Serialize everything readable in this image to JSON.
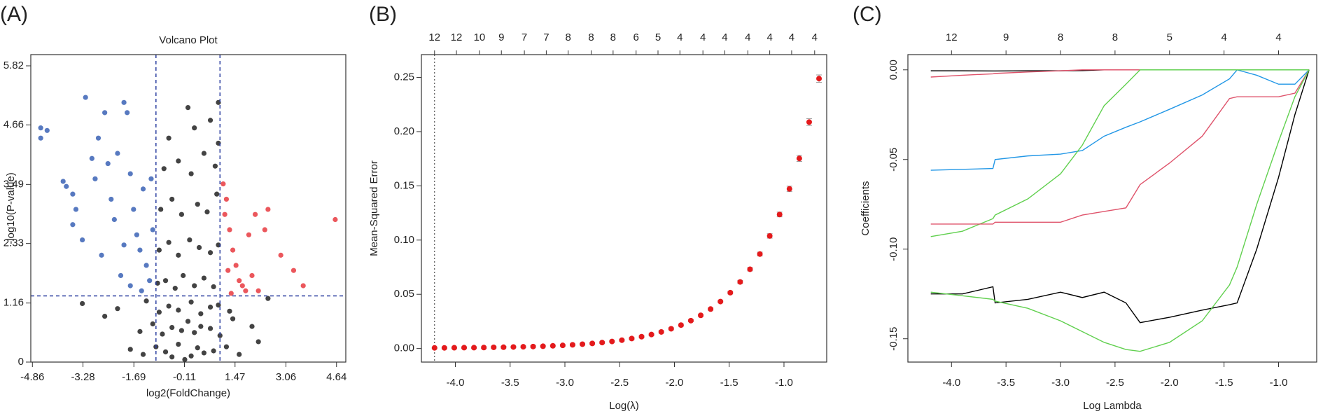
{
  "chart_data": [
    {
      "type": "volcano",
      "panel_label": "(A)",
      "title": "Volcano Plot",
      "x_label": "log2(FoldChange)",
      "y_label": "-log10(P-value)",
      "xlim": [
        -4.91,
        4.93
      ],
      "ylim": [
        0,
        6.04
      ],
      "xticks": [
        -4.86,
        -3.28,
        -1.69,
        -0.11,
        1.47,
        3.06,
        4.64
      ],
      "yticks": [
        0,
        1.16,
        2.33,
        3.49,
        4.66,
        5.82
      ],
      "vlines": [
        -1,
        1
      ],
      "hline": 1.3,
      "line_color": "#2b3fa0",
      "series": [
        {
          "color": "#222222",
          "x": [
            -1.8,
            -1.4,
            -1.0,
            -0.7,
            -0.5,
            -0.3,
            -0.1,
            0.1,
            0.3,
            0.5,
            0.8,
            1.2,
            1.6,
            2.2,
            -2.6,
            -1.5,
            -1.1,
            -0.8,
            -0.5,
            -0.2,
            0,
            0.2,
            0.4,
            0.7,
            1.0,
            1.4,
            2.0,
            -3.3,
            -2.2,
            -1.3,
            -0.9,
            -0.6,
            -0.3,
            0.1,
            0.4,
            0.7,
            0.95,
            1.3,
            2.5,
            -0.95,
            -0.7,
            -0.4,
            -0.15,
            0.2,
            0.5,
            0.8,
            -0.9,
            -0.6,
            -0.3,
            0.05,
            0.35,
            0.7,
            0.95,
            -0.85,
            -0.5,
            -0.2,
            0.3,
            0.6,
            0.9,
            -0.75,
            -0.3,
            0.1,
            0.5,
            0.85,
            -0.6,
            0.2,
            0.7,
            0.95,
            0.95,
            0
          ],
          "y": [
            0.25,
            0.15,
            0.3,
            0.2,
            0.1,
            0.35,
            0.05,
            0.12,
            0.28,
            0.18,
            0.22,
            0.3,
            0.15,
            0.4,
            0.9,
            0.6,
            0.75,
            0.55,
            0.68,
            0.62,
            0.8,
            0.58,
            0.7,
            0.66,
            0.52,
            0.85,
            0.7,
            1.15,
            1.05,
            1.2,
            0.98,
            1.1,
            1.02,
            1.18,
            0.95,
            1.08,
            1.12,
            1.0,
            1.25,
            1.55,
            1.6,
            1.45,
            1.7,
            1.5,
            1.65,
            1.48,
            2.2,
            2.35,
            2.1,
            2.4,
            2.25,
            2.15,
            2.3,
            3.0,
            3.2,
            2.9,
            3.1,
            2.95,
            3.3,
            3.8,
            3.95,
            3.7,
            4.1,
            3.85,
            4.4,
            4.6,
            4.75,
            4.3,
            5.1,
            5.0
          ]
        },
        {
          "color": "#3a62b5",
          "x": [
            -4.6,
            -4.6,
            -4.4,
            -3.9,
            -3.8,
            -3.6,
            -3.5,
            -3.2,
            -3.0,
            -2.9,
            -2.8,
            -2.6,
            -2.5,
            -2.4,
            -2.3,
            -2.2,
            -2.0,
            -1.9,
            -1.8,
            -1.7,
            -1.6,
            -1.5,
            -1.4,
            -1.3,
            -1.2,
            -1.1,
            -3.3,
            -2.7,
            -2.1,
            -1.8,
            -1.45,
            -1.15,
            -3.6,
            -2.0
          ],
          "y": [
            4.6,
            4.4,
            4.55,
            3.55,
            3.45,
            3.3,
            3.0,
            5.2,
            4.0,
            3.6,
            4.4,
            4.9,
            3.9,
            3.2,
            2.8,
            4.1,
            5.1,
            4.9,
            3.7,
            3.0,
            2.5,
            2.2,
            3.4,
            1.9,
            1.6,
            2.6,
            2.4,
            2.1,
            1.7,
            1.5,
            1.4,
            3.6,
            2.7,
            2.3
          ]
        },
        {
          "color": "#e8393f",
          "x": [
            1.1,
            1.2,
            1.3,
            1.4,
            1.5,
            1.6,
            1.7,
            1.9,
            2.1,
            2.4,
            2.5,
            2.9,
            3.3,
            3.6,
            4.6,
            1.8,
            2.2,
            1.25,
            1.15,
            2.0,
            1.35
          ],
          "y": [
            3.5,
            3.2,
            2.6,
            2.2,
            1.9,
            1.6,
            1.5,
            2.5,
            2.9,
            2.6,
            3.0,
            2.1,
            1.8,
            1.5,
            2.8,
            1.4,
            1.4,
            1.8,
            2.9,
            1.7,
            1.35
          ]
        }
      ]
    },
    {
      "type": "errorbar",
      "panel_label": "(B)",
      "x_label": "Log(λ)",
      "y_label": "Mean-Squared Error",
      "xlim": [
        -4.31,
        -0.61
      ],
      "ylim": [
        -0.0125,
        0.271
      ],
      "xticks": [
        {
          "value": -4,
          "label": "-4.0"
        },
        {
          "value": -3.5,
          "label": "-3.5"
        },
        {
          "value": -3,
          "label": "-3.0"
        },
        {
          "value": -2.5,
          "label": "-2.5"
        },
        {
          "value": -2,
          "label": "-2.0"
        },
        {
          "value": -1.5,
          "label": "-1.5"
        },
        {
          "value": -1,
          "label": "-1.0"
        }
      ],
      "yticks": [
        {
          "value": 0,
          "label": "0.00"
        },
        {
          "value": 0.05,
          "label": "0.05"
        },
        {
          "value": 0.1,
          "label": "0.10"
        },
        {
          "value": 0.15,
          "label": "0.15"
        },
        {
          "value": 0.2,
          "label": "0.20"
        },
        {
          "value": 0.25,
          "label": "0.25"
        }
      ],
      "topticks": [
        {
          "value": -4.19,
          "label": "12"
        },
        {
          "value": -3.99,
          "label": "12"
        },
        {
          "value": -3.78,
          "label": "10"
        },
        {
          "value": -3.58,
          "label": "9"
        },
        {
          "value": -3.37,
          "label": "7"
        },
        {
          "value": -3.17,
          "label": "7"
        },
        {
          "value": -2.97,
          "label": "8"
        },
        {
          "value": -2.76,
          "label": "8"
        },
        {
          "value": -2.56,
          "label": "8"
        },
        {
          "value": -2.35,
          "label": "6"
        },
        {
          "value": -2.15,
          "label": "5"
        },
        {
          "value": -1.95,
          "label": "4"
        },
        {
          "value": -1.74,
          "label": "4"
        },
        {
          "value": -1.54,
          "label": "4"
        },
        {
          "value": -1.33,
          "label": "4"
        },
        {
          "value": -1.13,
          "label": "4"
        },
        {
          "value": -0.93,
          "label": "4"
        },
        {
          "value": -0.72,
          "label": "4"
        }
      ],
      "vline": -4.19,
      "color": "#e41a1c",
      "error_color": "#9a9a9a",
      "x": [
        -4.19,
        -4.1,
        -4.01,
        -3.92,
        -3.83,
        -3.74,
        -3.65,
        -3.56,
        -3.47,
        -3.38,
        -3.29,
        -3.2,
        -3.11,
        -3.02,
        -2.93,
        -2.84,
        -2.75,
        -2.66,
        -2.57,
        -2.48,
        -2.39,
        -2.3,
        -2.21,
        -2.12,
        -2.03,
        -1.94,
        -1.85,
        -1.76,
        -1.67,
        -1.58,
        -1.49,
        -1.4,
        -1.31,
        -1.22,
        -1.13,
        -1.04,
        -0.95,
        -0.86,
        -0.77,
        -0.68
      ],
      "values": [
        0.0006,
        0.0006,
        0.0007,
        0.0008,
        0.0008,
        0.0009,
        0.0011,
        0.0012,
        0.0014,
        0.0016,
        0.0018,
        0.0021,
        0.0025,
        0.0029,
        0.0034,
        0.004,
        0.0047,
        0.0055,
        0.0065,
        0.0077,
        0.0092,
        0.0109,
        0.0129,
        0.0153,
        0.0182,
        0.0216,
        0.0257,
        0.0306,
        0.0364,
        0.0433,
        0.0515,
        0.0614,
        0.0731,
        0.0871,
        0.1038,
        0.1236,
        0.1472,
        0.1753,
        0.2088,
        0.2489
      ],
      "errors": [
        0.0008,
        0.0008,
        0.0008,
        0.0008,
        0.0008,
        0.0008,
        0.0008,
        0.0008,
        0.0008,
        0.0008,
        0.0008,
        0.0008,
        0.0008,
        0.0008,
        0.0008,
        0.0008,
        0.0008,
        0.0008,
        0.0008,
        0.0008,
        0.001,
        0.001,
        0.001,
        0.001,
        0.001,
        0.001,
        0.001,
        0.001,
        0.001,
        0.001,
        0.0012,
        0.0014,
        0.0016,
        0.0018,
        0.002,
        0.0022,
        0.0025,
        0.0028,
        0.0031,
        0.0034
      ]
    },
    {
      "type": "line",
      "panel_label": "(C)",
      "x_label": "Log Lambda",
      "y_label": "Coefficients",
      "xlim": [
        -4.4,
        -0.65
      ],
      "ylim": [
        -0.163,
        0.0085
      ],
      "xticks": [
        {
          "value": -4,
          "label": "-4.0"
        },
        {
          "value": -3.5,
          "label": "-3.5"
        },
        {
          "value": -3,
          "label": "-3.0"
        },
        {
          "value": -2.5,
          "label": "-2.5"
        },
        {
          "value": -2,
          "label": "-2.0"
        },
        {
          "value": -1.5,
          "label": "-1.5"
        },
        {
          "value": -1,
          "label": "-1.0"
        }
      ],
      "yticks": [
        {
          "value": 0,
          "label": "0.00"
        },
        {
          "value": -0.05,
          "label": "-0.05"
        },
        {
          "value": -0.1,
          "label": "-0.10"
        },
        {
          "value": -0.15,
          "label": "-0.15"
        }
      ],
      "topticks": [
        {
          "value": -4.0,
          "label": "12"
        },
        {
          "value": -3.5,
          "label": "9"
        },
        {
          "value": -3.0,
          "label": "8"
        },
        {
          "value": -2.5,
          "label": "8"
        },
        {
          "value": -2.0,
          "label": "5"
        },
        {
          "value": -1.5,
          "label": "4"
        },
        {
          "value": -1.0,
          "label": "4"
        }
      ],
      "x": [
        -4.19,
        -3.9,
        -3.62,
        -3.6,
        -3.3,
        -3.0,
        -2.8,
        -2.6,
        -2.4,
        -2.27,
        -2.0,
        -1.7,
        -1.45,
        -1.38,
        -1.2,
        -1.0,
        -0.85,
        -0.72
      ],
      "series": [
        {
          "color": "#000000",
          "values": [
            -0.0005,
            -0.0005,
            -0.0006,
            -0.0006,
            -0.0005,
            -0.0005,
            -0.0004,
            0,
            0,
            0,
            0,
            0,
            0,
            0,
            0,
            0,
            0,
            0
          ]
        },
        {
          "color": "#DF536B",
          "values": [
            -0.004,
            -0.003,
            -0.0022,
            -0.002,
            -0.0012,
            -0.0005,
            0,
            0,
            0,
            0,
            0,
            0,
            0,
            0,
            0,
            0,
            0,
            0
          ]
        },
        {
          "color": "#2297E6",
          "values": [
            -0.056,
            -0.0555,
            -0.055,
            -0.05,
            -0.048,
            -0.047,
            -0.045,
            -0.037,
            -0.032,
            -0.029,
            -0.022,
            -0.014,
            -0.005,
            0,
            -0.003,
            -0.008,
            -0.008,
            0
          ]
        },
        {
          "color": "#61D04F",
          "values": [
            -0.093,
            -0.09,
            -0.083,
            -0.081,
            -0.072,
            -0.058,
            -0.042,
            -0.02,
            -0.008,
            0,
            0,
            0,
            0,
            0,
            0,
            0,
            0,
            0
          ]
        },
        {
          "color": "#DF536B",
          "values": [
            -0.086,
            -0.086,
            -0.086,
            -0.085,
            -0.085,
            -0.085,
            -0.081,
            -0.079,
            -0.077,
            -0.064,
            -0.052,
            -0.037,
            -0.016,
            -0.015,
            -0.015,
            -0.015,
            -0.013,
            0
          ]
        },
        {
          "color": "#000000",
          "values": [
            -0.125,
            -0.125,
            -0.121,
            -0.13,
            -0.128,
            -0.124,
            -0.127,
            -0.124,
            -0.13,
            -0.141,
            -0.138,
            -0.134,
            -0.131,
            -0.13,
            -0.1,
            -0.06,
            -0.025,
            0
          ]
        },
        {
          "color": "#61D04F",
          "values": [
            -0.124,
            -0.126,
            -0.128,
            -0.129,
            -0.133,
            -0.14,
            -0.146,
            -0.152,
            -0.156,
            -0.157,
            -0.152,
            -0.14,
            -0.12,
            -0.11,
            -0.075,
            -0.04,
            -0.015,
            0
          ]
        }
      ]
    }
  ]
}
